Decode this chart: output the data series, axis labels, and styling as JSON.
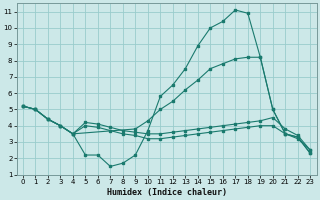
{
  "xlabel": "Humidex (Indice chaleur)",
  "bg_color": "#cce8e8",
  "grid_color": "#99cccc",
  "line_color": "#1a7a6e",
  "xlim": [
    -0.5,
    23.5
  ],
  "ylim": [
    1,
    11.5
  ],
  "xticks": [
    0,
    1,
    2,
    3,
    4,
    5,
    6,
    7,
    8,
    9,
    10,
    11,
    12,
    13,
    14,
    15,
    16,
    17,
    18,
    19,
    20,
    21,
    22,
    23
  ],
  "yticks": [
    1,
    2,
    3,
    4,
    5,
    6,
    7,
    8,
    9,
    10,
    11
  ],
  "lines": [
    {
      "x": [
        0,
        1,
        2,
        3,
        4,
        5,
        6,
        7,
        8,
        9,
        10,
        11,
        12,
        13,
        14,
        15,
        16,
        17,
        18,
        19,
        20,
        21,
        22,
        23
      ],
      "y": [
        5.2,
        5.0,
        4.4,
        4.0,
        3.5,
        2.2,
        2.2,
        1.5,
        1.7,
        2.2,
        3.7,
        5.8,
        6.5,
        7.5,
        8.9,
        10.0,
        10.4,
        11.1,
        10.9,
        8.2,
        5.0,
        3.5,
        3.3,
        2.3
      ]
    },
    {
      "x": [
        0,
        1,
        2,
        3,
        4,
        9,
        10,
        11,
        12,
        13,
        14,
        15,
        16,
        17,
        18,
        19,
        20,
        21,
        22,
        23
      ],
      "y": [
        5.2,
        5.0,
        4.4,
        4.0,
        3.5,
        3.8,
        4.3,
        5.0,
        5.5,
        6.2,
        6.8,
        7.5,
        7.8,
        8.1,
        8.2,
        8.2,
        5.0,
        3.5,
        3.3,
        2.3
      ]
    },
    {
      "x": [
        0,
        1,
        2,
        3,
        4,
        5,
        6,
        7,
        8,
        9,
        10,
        11,
        12,
        13,
        14,
        15,
        16,
        17,
        18,
        19,
        20,
        21,
        22,
        23
      ],
      "y": [
        5.2,
        5.0,
        4.4,
        4.0,
        3.5,
        4.2,
        4.1,
        3.9,
        3.7,
        3.6,
        3.5,
        3.5,
        3.6,
        3.7,
        3.8,
        3.9,
        4.0,
        4.1,
        4.2,
        4.3,
        4.5,
        3.8,
        3.4,
        2.5
      ]
    },
    {
      "x": [
        0,
        1,
        2,
        3,
        4,
        5,
        6,
        7,
        8,
        9,
        10,
        11,
        12,
        13,
        14,
        15,
        16,
        17,
        18,
        19,
        20,
        21,
        22,
        23
      ],
      "y": [
        5.2,
        5.0,
        4.4,
        4.0,
        3.5,
        4.0,
        3.9,
        3.7,
        3.5,
        3.4,
        3.2,
        3.2,
        3.3,
        3.4,
        3.5,
        3.6,
        3.7,
        3.8,
        3.9,
        4.0,
        4.0,
        3.5,
        3.2,
        2.5
      ]
    }
  ]
}
